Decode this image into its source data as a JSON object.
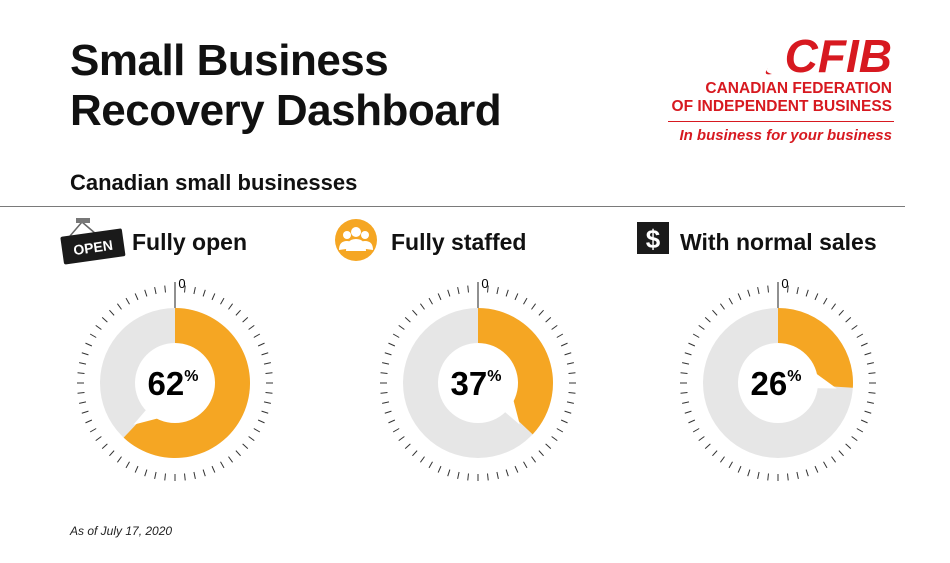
{
  "header": {
    "title_line1": "Small Business",
    "title_line2": "Recovery Dashboard"
  },
  "logo": {
    "wordmark": "CFIB",
    "line1": "CANADIAN FEDERATION",
    "line2": "OF INDEPENDENT BUSINESS",
    "tagline": "In business for your business",
    "color": "#d71920"
  },
  "subtitle": "Canadian small businesses",
  "footnote": "As of July 17, 2020",
  "colors": {
    "accent": "#f5a623",
    "remainder": "#e6e6e6",
    "ticks": "#333333",
    "icon_yellow": "#f5a623"
  },
  "icons": {
    "open": {
      "name": "open-sign-icon",
      "text": "OPEN"
    },
    "staffed": {
      "name": "people-icon"
    },
    "sales": {
      "name": "dollar-icon",
      "text": "$"
    }
  },
  "chart_data": [
    {
      "type": "pie",
      "title": "Fully open",
      "value": 62,
      "max": 100,
      "zero_label": "0",
      "value_label": "62",
      "unit": "%"
    },
    {
      "type": "pie",
      "title": "Fully staffed",
      "value": 37,
      "max": 100,
      "zero_label": "0",
      "value_label": "37",
      "unit": "%"
    },
    {
      "type": "pie",
      "title": "With normal sales",
      "value": 26,
      "max": 100,
      "zero_label": "0",
      "value_label": "26",
      "unit": "%"
    }
  ]
}
